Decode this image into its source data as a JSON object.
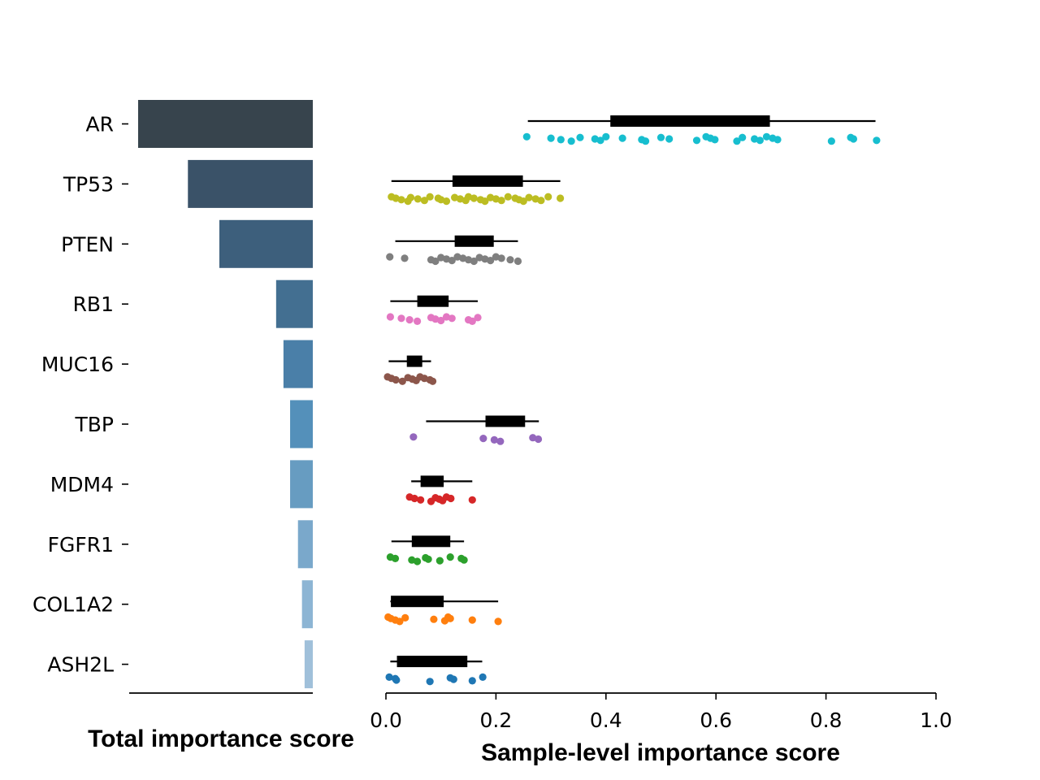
{
  "chart_data": [
    {
      "type": "bar",
      "orientation": "horizontal",
      "direction": "right-to-left",
      "xlabel": "Total importance score",
      "categories": [
        "AR",
        "TP53",
        "PTEN",
        "RB1",
        "MUC16",
        "TBP",
        "MDM4",
        "FGFR1",
        "COL1A2",
        "ASH2L"
      ],
      "values": [
        1.0,
        0.715,
        0.535,
        0.21,
        0.168,
        0.13,
        0.13,
        0.085,
        0.062,
        0.047
      ],
      "value_scale": "relative (no numeric axis shown)",
      "colors": [
        "#37444d",
        "#3a5268",
        "#3d5f7c",
        "#436f91",
        "#4a7fa8",
        "#5490ba",
        "#679cc1",
        "#7aa8cb",
        "#8db5d4",
        "#a0c0da"
      ]
    },
    {
      "type": "scatter",
      "subtype": "box-and-strip",
      "xlabel": "Sample-level importance score",
      "xlim": [
        0.0,
        1.0
      ],
      "xticks": [
        "0.0",
        "0.2",
        "0.4",
        "0.6",
        "0.8",
        "1.0"
      ],
      "categories": [
        "AR",
        "TP53",
        "PTEN",
        "RB1",
        "MUC16",
        "TBP",
        "MDM4",
        "FGFR1",
        "COL1A2",
        "ASH2L"
      ],
      "series": [
        {
          "category": "AR",
          "color": "#17becf",
          "whisker": [
            0.258,
            0.89
          ],
          "box": [
            0.408,
            0.698
          ],
          "points": [
            0.256,
            0.3,
            0.318,
            0.337,
            0.353,
            0.38,
            0.39,
            0.4,
            0.43,
            0.465,
            0.472,
            0.5,
            0.515,
            0.565,
            0.582,
            0.59,
            0.598,
            0.638,
            0.648,
            0.67,
            0.68,
            0.692,
            0.703,
            0.712,
            0.81,
            0.845,
            0.85,
            0.892
          ]
        },
        {
          "category": "TP53",
          "color": "#bcbd22",
          "whisker": [
            0.01,
            0.317
          ],
          "box": [
            0.121,
            0.249
          ],
          "points": [
            0.01,
            0.018,
            0.028,
            0.04,
            0.045,
            0.058,
            0.07,
            0.08,
            0.095,
            0.1,
            0.11,
            0.125,
            0.135,
            0.145,
            0.15,
            0.16,
            0.172,
            0.18,
            0.19,
            0.2,
            0.21,
            0.222,
            0.235,
            0.242,
            0.25,
            0.26,
            0.272,
            0.282,
            0.295,
            0.317
          ]
        },
        {
          "category": "PTEN",
          "color": "#7f7f7f",
          "whisker": [
            0.017,
            0.24
          ],
          "box": [
            0.125,
            0.196
          ],
          "points": [
            0.007,
            0.034,
            0.082,
            0.09,
            0.1,
            0.11,
            0.12,
            0.13,
            0.14,
            0.15,
            0.16,
            0.17,
            0.18,
            0.19,
            0.2,
            0.21,
            0.226,
            0.24
          ]
        },
        {
          "category": "RB1",
          "color": "#e377c2",
          "whisker": [
            0.008,
            0.167
          ],
          "box": [
            0.057,
            0.114
          ],
          "points": [
            0.008,
            0.028,
            0.043,
            0.057,
            0.082,
            0.09,
            0.1,
            0.11,
            0.12,
            0.15,
            0.157,
            0.167
          ]
        },
        {
          "category": "MUC16",
          "color": "#8c564b",
          "whisker": [
            0.005,
            0.082
          ],
          "box": [
            0.038,
            0.066
          ],
          "points": [
            0.003,
            0.01,
            0.018,
            0.03,
            0.04,
            0.048,
            0.055,
            0.062,
            0.07,
            0.08,
            0.085
          ]
        },
        {
          "category": "TBP",
          "color": "#9467bd",
          "whisker": [
            0.073,
            0.278
          ],
          "box": [
            0.181,
            0.253
          ],
          "points": [
            0.05,
            0.177,
            0.197,
            0.208,
            0.267,
            0.277
          ]
        },
        {
          "category": "MDM4",
          "color": "#d62728",
          "whisker": [
            0.046,
            0.157
          ],
          "box": [
            0.063,
            0.105
          ],
          "points": [
            0.043,
            0.052,
            0.063,
            0.082,
            0.09,
            0.097,
            0.103,
            0.11,
            0.118,
            0.157
          ]
        },
        {
          "category": "FGFR1",
          "color": "#2ca02c",
          "whisker": [
            0.01,
            0.142
          ],
          "box": [
            0.047,
            0.117
          ],
          "points": [
            0.008,
            0.017,
            0.047,
            0.057,
            0.072,
            0.077,
            0.098,
            0.117,
            0.137,
            0.142
          ]
        },
        {
          "category": "COL1A2",
          "color": "#ff7f0e",
          "whisker": [
            0.008,
            0.204
          ],
          "box": [
            0.009,
            0.105
          ],
          "points": [
            0.004,
            0.009,
            0.017,
            0.025,
            0.035,
            0.087,
            0.107,
            0.113,
            0.117,
            0.157,
            0.204
          ]
        },
        {
          "category": "ASH2L",
          "color": "#1f77b4",
          "whisker": [
            0.008,
            0.175
          ],
          "box": [
            0.02,
            0.148
          ],
          "points": [
            0.006,
            0.017,
            0.019,
            0.08,
            0.117,
            0.123,
            0.157,
            0.176
          ]
        }
      ]
    }
  ]
}
